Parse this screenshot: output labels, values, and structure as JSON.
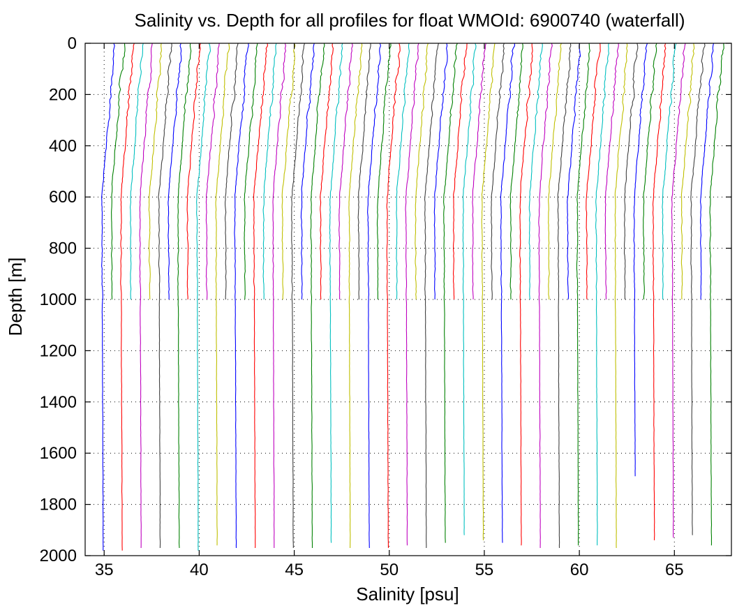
{
  "chart_data": {
    "type": "line",
    "title": "Salinity vs. Depth for all profiles for float WMOId: 6900740 (waterfall)",
    "xlabel": "Salinity [psu]",
    "ylabel": "Depth [m]",
    "xlim": [
      34,
      68
    ],
    "ylim": [
      0,
      2000
    ],
    "y_reversed": true,
    "grid": true,
    "legend": "none",
    "x_ticks": [
      35,
      40,
      45,
      50,
      55,
      60,
      65
    ],
    "y_ticks": [
      0,
      200,
      400,
      600,
      800,
      1000,
      1200,
      1400,
      1600,
      1800,
      2000
    ],
    "waterfall_offset_psu_per_profile": 0.5,
    "color_cycle": [
      "#0000ff",
      "#008000",
      "#ff0000",
      "#00bfbf",
      "#bf00bf",
      "#bfbf00",
      "#404040"
    ],
    "profile_starts_psu": [
      35,
      35.5,
      36,
      36.5,
      37,
      37.5,
      38,
      38.5,
      39,
      39.5,
      40,
      40.5,
      41,
      41.5,
      42,
      42.5,
      43,
      43.5,
      44,
      44.5,
      45,
      45.5,
      46,
      46.5,
      47,
      47.5,
      48,
      48.5,
      49,
      49.5,
      50,
      50.5,
      51,
      51.5,
      52,
      52.5,
      53,
      53.5,
      54,
      54.5,
      55,
      55.5,
      56,
      56.5,
      57,
      57.5,
      58,
      58.5,
      59,
      59.5,
      60,
      60.5,
      61,
      61.5,
      62,
      62.5,
      63,
      63.5,
      64,
      64.5,
      65,
      65.5,
      66,
      66.5,
      67
    ],
    "profile_max_depth_m": [
      1980,
      1000,
      1980,
      1000,
      1975,
      1000,
      1975,
      1000,
      1975,
      1000,
      1980,
      1000,
      1960,
      1000,
      1975,
      1000,
      1970,
      1000,
      1970,
      1000,
      1975,
      1000,
      1975,
      1000,
      1955,
      1000,
      1975,
      1000,
      1975,
      1000,
      1975,
      1000,
      1965,
      1000,
      1975,
      1000,
      1950,
      1000,
      1925,
      1000,
      1940,
      1000,
      1950,
      1000,
      1960,
      1000,
      1975,
      1000,
      1970,
      1000,
      1960,
      1000,
      1965,
      1000,
      1975,
      1000,
      1695,
      1000,
      1945,
      1000,
      1930,
      1000,
      1925,
      1000,
      1960
    ],
    "surface_salinity_offset_psu": 0.55,
    "deep_salinity_offset_psu": -0.05
  }
}
